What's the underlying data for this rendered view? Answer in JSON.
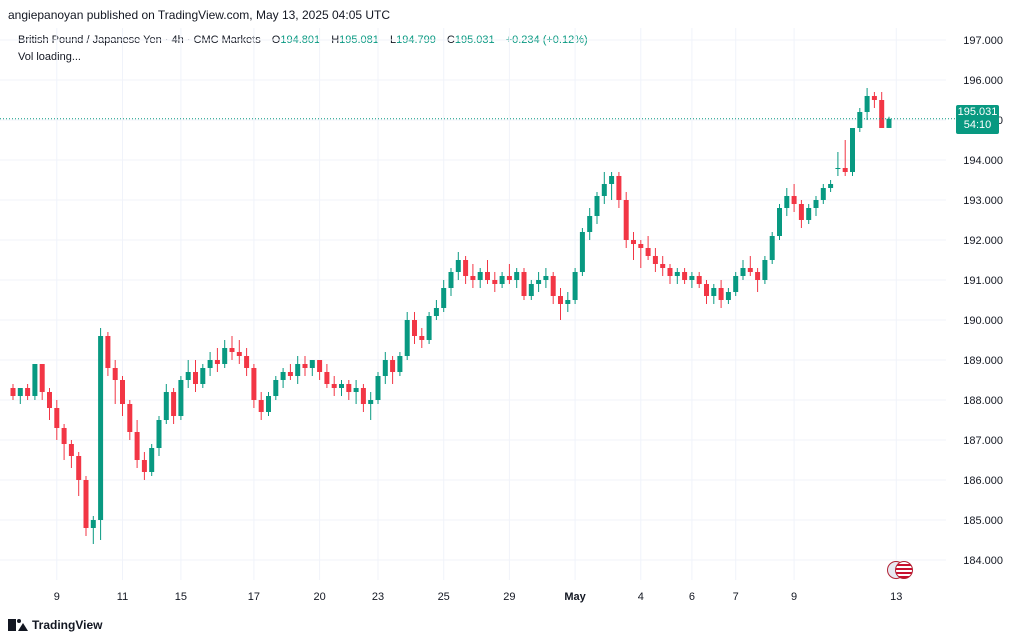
{
  "header": {
    "published": "angiepanoyan published on TradingView.com, May 13, 2025 04:05 UTC"
  },
  "legend": {
    "symbol": "British Pound / Japanese Yen · 4h · CMC Markets",
    "open_label": "O",
    "open": "194.801",
    "high_label": "H",
    "high": "195.081",
    "low_label": "L",
    "low": "194.799",
    "close_label": "C",
    "close": "195.031",
    "change": "+0.234 (+0.12%)",
    "vol": "Vol loading..."
  },
  "price_tag": {
    "price": "195.031",
    "countdown": "54:10"
  },
  "footer": {
    "brand": "TradingView"
  },
  "colors": {
    "up": "#089981",
    "down": "#f23645",
    "grid": "#f0f3fa",
    "text": "#131722",
    "axis_text": "#131722"
  },
  "chart_data": {
    "type": "candlestick",
    "title": "British Pound / Japanese Yen · 4h · CMC Markets",
    "ylim": [
      183.5,
      197.3
    ],
    "y_ticks": [
      "197.000",
      "196.000",
      "195.000",
      "194.000",
      "193.000",
      "192.000",
      "191.000",
      "190.000",
      "189.000",
      "188.000",
      "187.000",
      "186.000",
      "185.000",
      "184.000"
    ],
    "x_ticks": [
      {
        "label": "9",
        "i": 6
      },
      {
        "label": "11",
        "i": 15
      },
      {
        "label": "15",
        "i": 23
      },
      {
        "label": "17",
        "i": 33
      },
      {
        "label": "20",
        "i": 42
      },
      {
        "label": "23",
        "i": 50
      },
      {
        "label": "25",
        "i": 59
      },
      {
        "label": "29",
        "i": 68
      },
      {
        "label": "May",
        "i": 77,
        "bold": true
      },
      {
        "label": "4",
        "i": 86
      },
      {
        "label": "6",
        "i": 93
      },
      {
        "label": "7",
        "i": 99
      },
      {
        "label": "9",
        "i": 107
      },
      {
        "label": "13",
        "i": 121
      }
    ],
    "last_price": 195.031,
    "candles": [
      [
        188.3,
        188.4,
        188.0,
        188.1
      ],
      [
        188.1,
        188.3,
        187.9,
        188.3
      ],
      [
        188.3,
        188.4,
        188.0,
        188.1
      ],
      [
        188.1,
        188.9,
        188.0,
        188.9
      ],
      [
        188.9,
        188.9,
        188.0,
        188.2
      ],
      [
        188.2,
        188.3,
        187.5,
        187.8
      ],
      [
        187.8,
        188.0,
        187.0,
        187.3
      ],
      [
        187.3,
        187.4,
        186.5,
        186.9
      ],
      [
        186.9,
        187.0,
        186.3,
        186.6
      ],
      [
        186.6,
        186.7,
        185.6,
        186.0
      ],
      [
        186.0,
        186.1,
        184.6,
        184.8
      ],
      [
        184.8,
        185.1,
        184.4,
        185.0
      ],
      [
        185.0,
        189.8,
        184.5,
        189.6
      ],
      [
        189.6,
        189.7,
        188.6,
        188.8
      ],
      [
        188.8,
        189.0,
        187.9,
        188.5
      ],
      [
        188.5,
        188.6,
        187.6,
        187.9
      ],
      [
        187.9,
        188.0,
        187.0,
        187.2
      ],
      [
        187.2,
        187.5,
        186.3,
        186.5
      ],
      [
        186.5,
        186.7,
        186.0,
        186.2
      ],
      [
        186.2,
        186.9,
        186.1,
        186.8
      ],
      [
        186.8,
        187.6,
        186.6,
        187.5
      ],
      [
        187.5,
        188.4,
        187.4,
        188.2
      ],
      [
        188.2,
        188.3,
        187.4,
        187.6
      ],
      [
        187.6,
        188.6,
        187.5,
        188.5
      ],
      [
        188.5,
        189.0,
        188.3,
        188.7
      ],
      [
        188.7,
        189.0,
        188.2,
        188.4
      ],
      [
        188.4,
        188.9,
        188.3,
        188.8
      ],
      [
        188.8,
        189.2,
        188.6,
        189.0
      ],
      [
        189.0,
        189.3,
        188.7,
        188.9
      ],
      [
        188.9,
        189.5,
        188.8,
        189.3
      ],
      [
        189.3,
        189.6,
        189.0,
        189.2
      ],
      [
        189.2,
        189.5,
        188.9,
        189.1
      ],
      [
        189.1,
        189.3,
        188.6,
        188.8
      ],
      [
        188.8,
        188.9,
        187.8,
        188.0
      ],
      [
        188.0,
        188.2,
        187.5,
        187.7
      ],
      [
        187.7,
        188.2,
        187.6,
        188.1
      ],
      [
        188.1,
        188.6,
        188.0,
        188.5
      ],
      [
        188.5,
        188.8,
        188.3,
        188.7
      ],
      [
        188.7,
        188.9,
        188.5,
        188.6
      ],
      [
        188.6,
        189.1,
        188.4,
        188.9
      ],
      [
        188.9,
        189.1,
        188.6,
        188.8
      ],
      [
        188.8,
        189.0,
        188.6,
        189.0
      ],
      [
        189.0,
        189.0,
        188.5,
        188.7
      ],
      [
        188.7,
        188.9,
        188.3,
        188.4
      ],
      [
        188.4,
        188.6,
        188.1,
        188.3
      ],
      [
        188.3,
        188.5,
        188.1,
        188.4
      ],
      [
        188.4,
        188.5,
        188.0,
        188.2
      ],
      [
        188.2,
        188.5,
        187.9,
        188.3
      ],
      [
        188.3,
        188.4,
        187.7,
        187.9
      ],
      [
        187.9,
        188.2,
        187.5,
        188.0
      ],
      [
        188.0,
        188.7,
        187.9,
        188.6
      ],
      [
        188.6,
        189.2,
        188.4,
        189.0
      ],
      [
        189.0,
        189.1,
        188.4,
        188.7
      ],
      [
        188.7,
        189.2,
        188.6,
        189.1
      ],
      [
        189.1,
        190.2,
        189.0,
        190.0
      ],
      [
        190.0,
        190.2,
        189.4,
        189.6
      ],
      [
        189.6,
        189.8,
        189.3,
        189.5
      ],
      [
        189.5,
        190.2,
        189.4,
        190.1
      ],
      [
        190.1,
        190.5,
        190.0,
        190.3
      ],
      [
        190.3,
        191.0,
        190.2,
        190.8
      ],
      [
        190.8,
        191.3,
        190.6,
        191.2
      ],
      [
        191.2,
        191.7,
        191.0,
        191.5
      ],
      [
        191.5,
        191.6,
        190.9,
        191.1
      ],
      [
        191.1,
        191.4,
        190.8,
        191.0
      ],
      [
        191.0,
        191.3,
        190.8,
        191.2
      ],
      [
        191.2,
        191.5,
        190.9,
        191.0
      ],
      [
        191.0,
        191.2,
        190.7,
        190.9
      ],
      [
        190.9,
        191.2,
        190.8,
        191.1
      ],
      [
        191.1,
        191.4,
        190.9,
        191.0
      ],
      [
        191.0,
        191.3,
        190.8,
        191.2
      ],
      [
        191.2,
        191.3,
        190.5,
        190.6
      ],
      [
        190.6,
        191.0,
        190.5,
        190.9
      ],
      [
        190.9,
        191.2,
        190.7,
        191.0
      ],
      [
        191.0,
        191.3,
        190.8,
        191.1
      ],
      [
        191.1,
        191.2,
        190.4,
        190.6
      ],
      [
        190.6,
        190.8,
        190.0,
        190.4
      ],
      [
        190.4,
        190.7,
        190.2,
        190.5
      ],
      [
        190.5,
        191.3,
        190.4,
        191.2
      ],
      [
        191.2,
        192.3,
        191.1,
        192.2
      ],
      [
        192.2,
        192.8,
        192.0,
        192.6
      ],
      [
        192.6,
        193.2,
        192.4,
        193.1
      ],
      [
        193.1,
        193.7,
        192.9,
        193.4
      ],
      [
        193.4,
        193.7,
        193.0,
        193.6
      ],
      [
        193.6,
        193.7,
        192.8,
        193.0
      ],
      [
        193.0,
        193.2,
        191.8,
        192.0
      ],
      [
        192.0,
        192.2,
        191.5,
        191.9
      ],
      [
        191.9,
        192.0,
        191.3,
        191.8
      ],
      [
        191.8,
        192.1,
        191.5,
        191.6
      ],
      [
        191.6,
        191.8,
        191.2,
        191.4
      ],
      [
        191.4,
        191.6,
        191.1,
        191.3
      ],
      [
        191.3,
        191.4,
        190.9,
        191.1
      ],
      [
        191.1,
        191.3,
        190.9,
        191.2
      ],
      [
        191.2,
        191.3,
        190.9,
        191.0
      ],
      [
        191.0,
        191.2,
        190.8,
        191.1
      ],
      [
        191.1,
        191.2,
        190.8,
        190.9
      ],
      [
        190.9,
        191.0,
        190.4,
        190.6
      ],
      [
        190.6,
        190.9,
        190.4,
        190.8
      ],
      [
        190.8,
        191.0,
        190.3,
        190.5
      ],
      [
        190.5,
        190.8,
        190.4,
        190.7
      ],
      [
        190.7,
        191.2,
        190.6,
        191.1
      ],
      [
        191.1,
        191.5,
        191.0,
        191.3
      ],
      [
        191.3,
        191.6,
        191.1,
        191.2
      ],
      [
        191.2,
        191.3,
        190.7,
        191.0
      ],
      [
        191.0,
        191.6,
        190.9,
        191.5
      ],
      [
        191.5,
        192.2,
        191.4,
        192.1
      ],
      [
        192.1,
        192.9,
        192.0,
        192.8
      ],
      [
        192.8,
        193.3,
        192.6,
        193.1
      ],
      [
        193.1,
        193.4,
        192.7,
        192.9
      ],
      [
        192.9,
        193.0,
        192.3,
        192.5
      ],
      [
        192.5,
        192.9,
        192.4,
        192.8
      ],
      [
        192.8,
        193.1,
        192.6,
        193.0
      ],
      [
        193.0,
        193.4,
        192.9,
        193.3
      ],
      [
        193.3,
        193.5,
        193.2,
        193.4
      ],
      [
        193.8,
        194.2,
        193.6,
        193.8
      ],
      [
        193.8,
        194.5,
        193.6,
        193.7
      ],
      [
        193.7,
        194.8,
        193.6,
        194.8
      ],
      [
        194.8,
        195.3,
        194.7,
        195.2
      ],
      [
        195.2,
        195.8,
        195.0,
        195.6
      ],
      [
        195.6,
        195.7,
        195.3,
        195.5
      ],
      [
        195.5,
        195.7,
        194.8,
        194.8
      ],
      [
        194.801,
        195.081,
        194.799,
        195.031
      ]
    ]
  }
}
